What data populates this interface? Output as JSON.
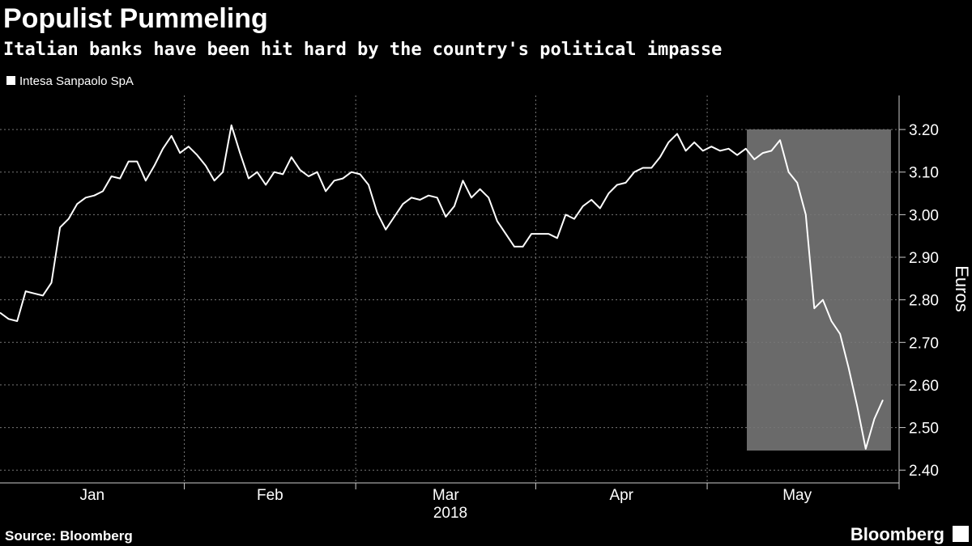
{
  "chart_data": {
    "type": "line",
    "title": "Populist Pummeling",
    "subtitle": "Italian banks have been hit hard by the country's political impasse",
    "source": "Source: Bloomberg",
    "brand": "Bloomberg",
    "y_axis_label": "Euros",
    "x_axis_label": "2018",
    "categories": [
      "Jan",
      null,
      null,
      null,
      null,
      null,
      null,
      null,
      null,
      null,
      null,
      null,
      null,
      null,
      null,
      null,
      null,
      null,
      null,
      null,
      null,
      null,
      "Feb",
      null,
      null,
      null,
      null,
      null,
      null,
      null,
      null,
      null,
      null,
      null,
      null,
      null,
      null,
      null,
      null,
      null,
      null,
      null,
      "Mar",
      null,
      null,
      null,
      null,
      null,
      null,
      null,
      null,
      null,
      null,
      null,
      null,
      null,
      null,
      null,
      null,
      null,
      null,
      null,
      null,
      "Apr",
      null,
      null,
      null,
      null,
      null,
      null,
      null,
      null,
      null,
      null,
      null,
      null,
      null,
      null,
      null,
      null,
      null,
      null,
      null,
      "May",
      null,
      null,
      null,
      null,
      null,
      null,
      null,
      null,
      null,
      null,
      null,
      null,
      null,
      null,
      null,
      null,
      null,
      null,
      null,
      null
    ],
    "series": [
      {
        "name": "Intesa Sanpaolo SpA",
        "color": "#ffffff",
        "values": [
          2.77,
          2.755,
          2.75,
          2.82,
          2.815,
          2.81,
          2.84,
          2.97,
          2.99,
          3.025,
          3.04,
          3.045,
          3.055,
          3.09,
          3.085,
          3.125,
          3.125,
          3.08,
          3.115,
          3.155,
          3.185,
          3.145,
          3.16,
          3.14,
          3.115,
          3.08,
          3.1,
          3.21,
          3.145,
          3.085,
          3.1,
          3.07,
          3.1,
          3.095,
          3.135,
          3.105,
          3.09,
          3.1,
          3.055,
          3.08,
          3.085,
          3.1,
          3.095,
          3.07,
          3.005,
          2.965,
          2.995,
          3.025,
          3.04,
          3.035,
          3.045,
          3.04,
          2.995,
          3.02,
          3.08,
          3.04,
          3.06,
          3.04,
          2.985,
          2.955,
          2.925,
          2.925,
          2.955,
          2.955,
          2.955,
          2.945,
          3.0,
          2.99,
          3.02,
          3.035,
          3.015,
          3.05,
          3.07,
          3.075,
          3.1,
          3.11,
          3.11,
          3.135,
          3.17,
          3.19,
          3.15,
          3.17,
          3.15,
          3.16,
          3.15,
          3.155,
          3.14,
          3.155,
          3.13,
          3.145,
          3.15,
          3.175,
          3.1,
          3.075,
          3.0,
          2.78,
          2.8,
          2.75,
          2.72,
          2.64,
          2.55,
          2.45,
          2.52,
          2.565
        ]
      }
    ],
    "ylim": [
      2.37,
      3.28
    ],
    "yticks": [
      {
        "value": 2.4,
        "label": "2.40"
      },
      {
        "value": 2.5,
        "label": "2.50"
      },
      {
        "value": 2.6,
        "label": "2.60"
      },
      {
        "value": 2.7,
        "label": "2.70"
      },
      {
        "value": 2.8,
        "label": "2.80"
      },
      {
        "value": 2.9,
        "label": "2.90"
      },
      {
        "value": 3.0,
        "label": "3.00"
      },
      {
        "value": 3.1,
        "label": "3.10"
      },
      {
        "value": 3.2,
        "label": "3.20"
      }
    ],
    "grid": true
  }
}
